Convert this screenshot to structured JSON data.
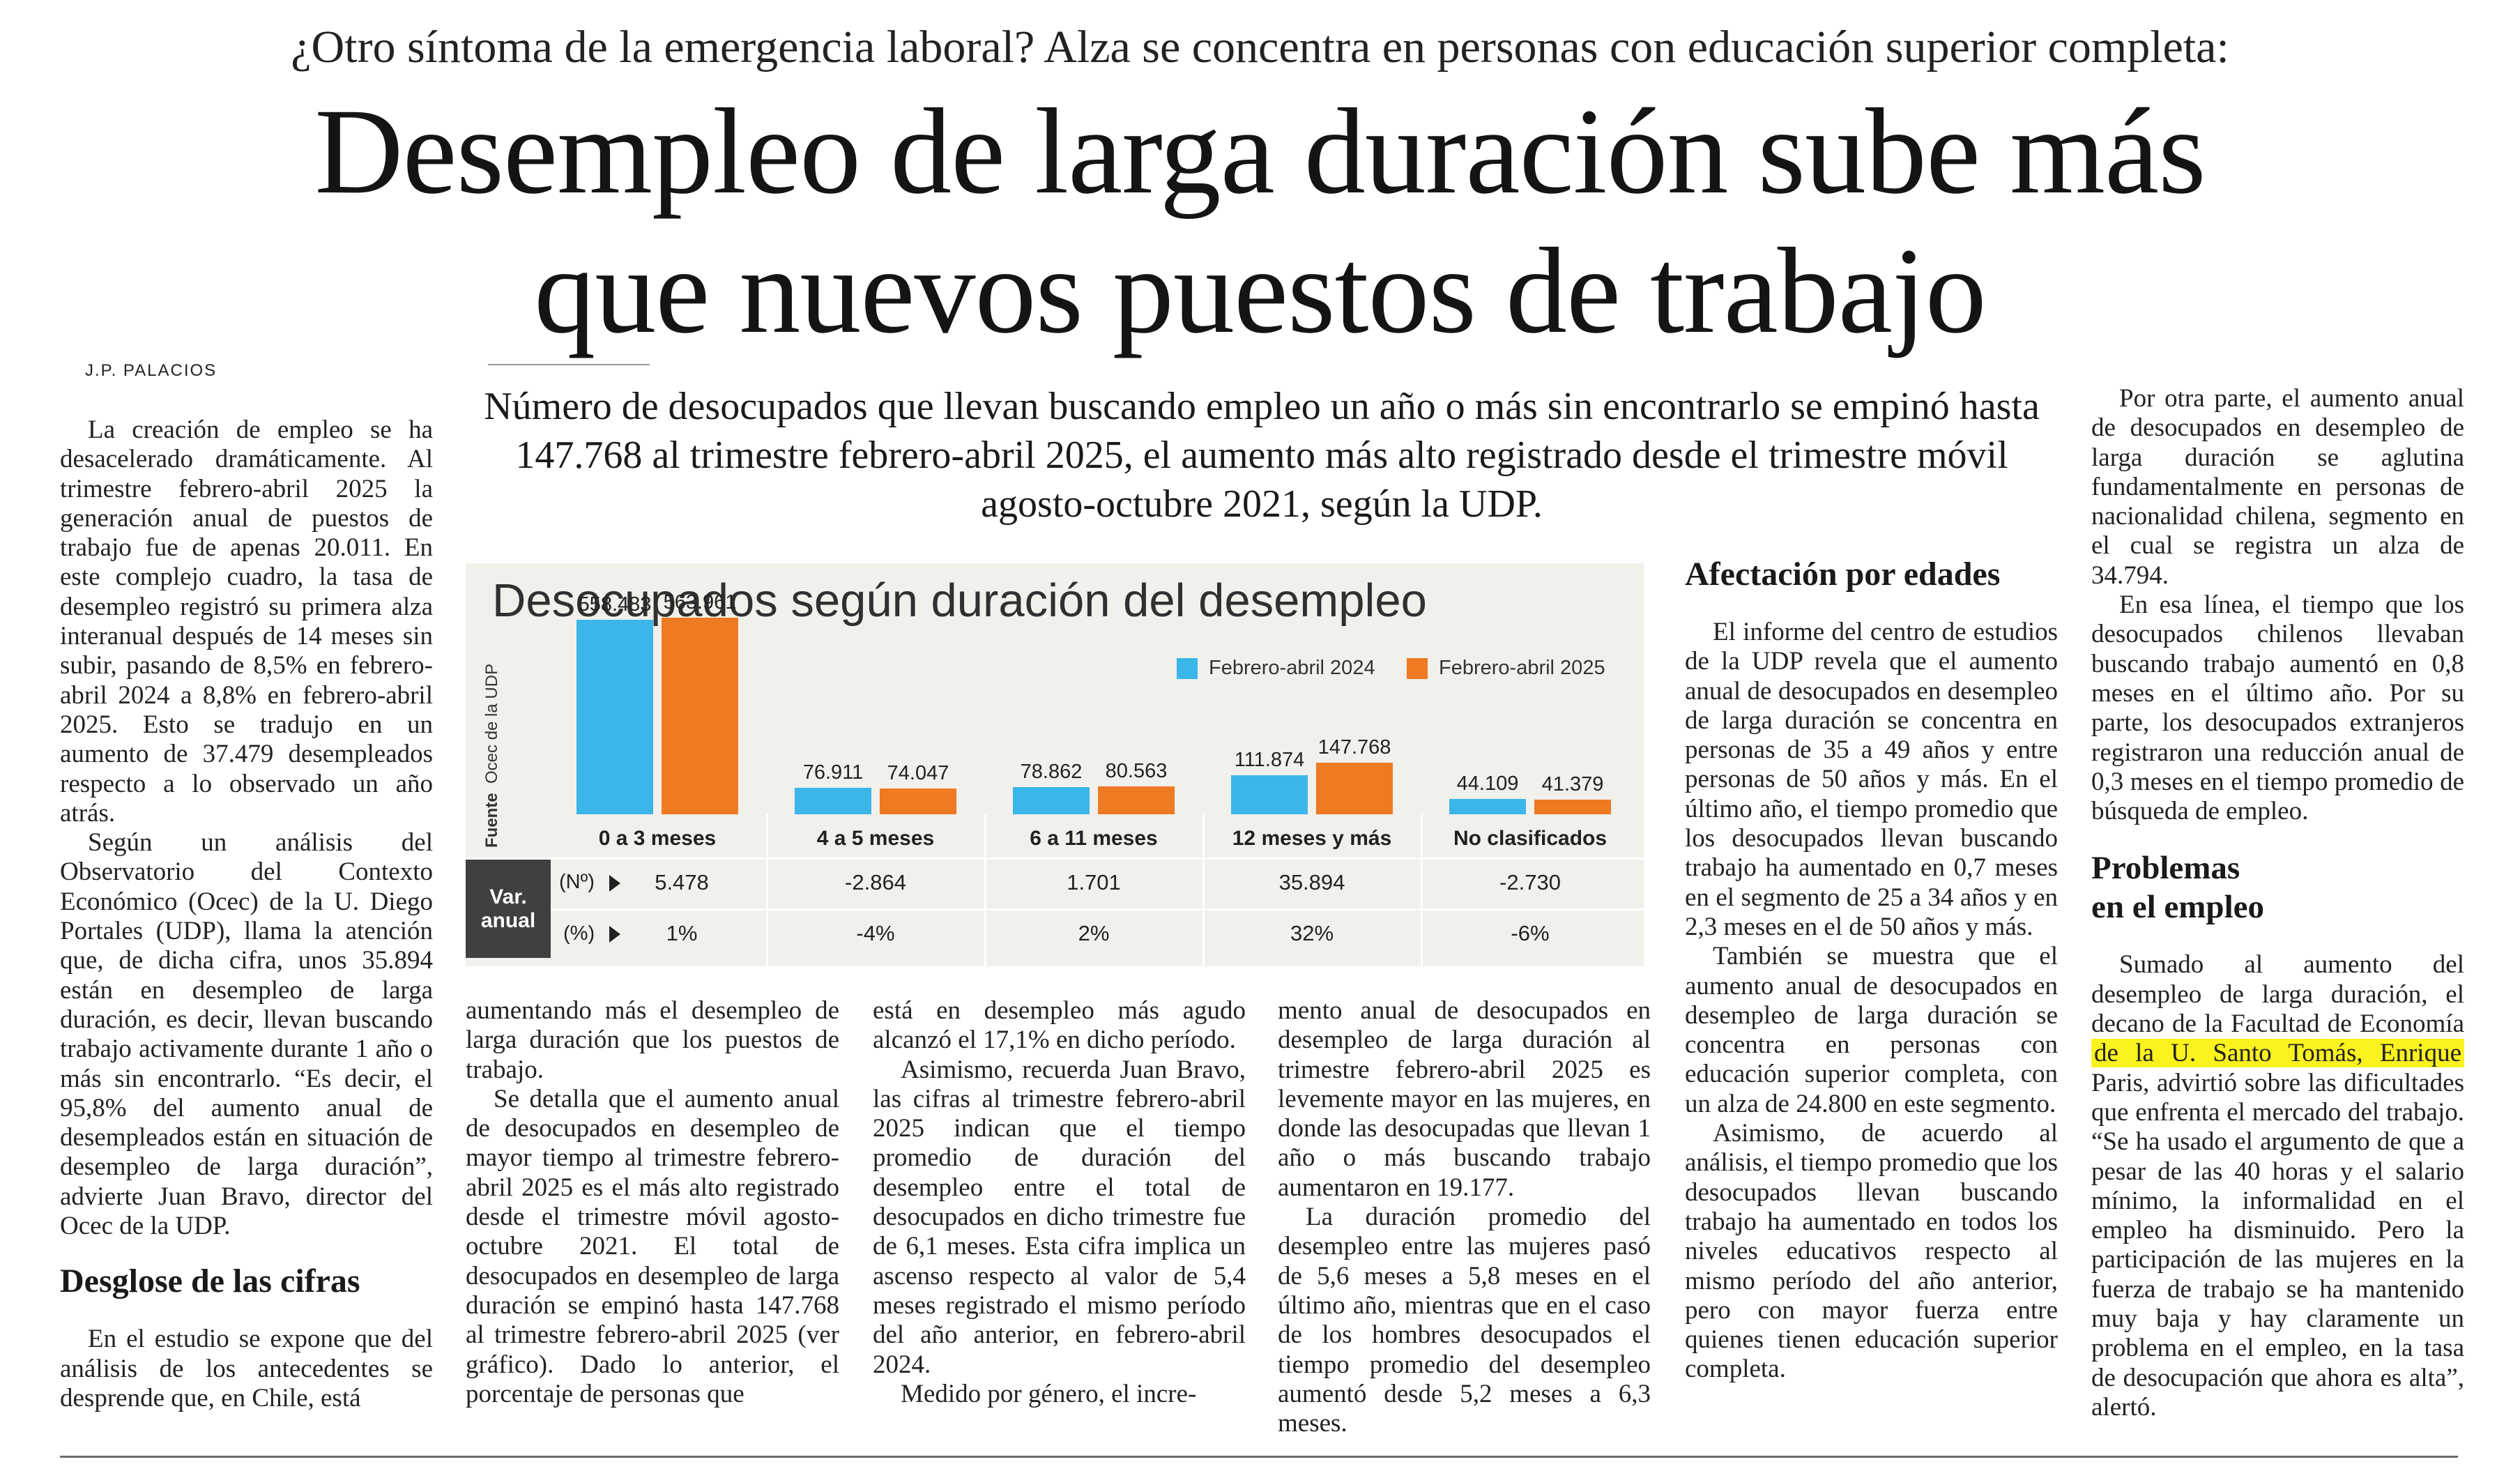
{
  "kicker": "¿Otro síntoma de la emergencia laboral? Alza se concentra en personas con educación superior completa:",
  "headline": {
    "line1": "Desempleo de larga duración sube más",
    "line2": "que nuevos puestos de trabajo"
  },
  "byline": "J.P. PALACIOS",
  "deck": "Número de desocupados que llevan buscando empleo un año o más sin encontrarlo se empinó hasta 147.768 al trimestre febrero-abril 2025, el aumento más alto registrado desde el trimestre móvil agosto-octubre 2021, según la UDP.",
  "col1": {
    "p1": "La creación de empleo se ha desacelerado dramáticamente. Al trimestre febrero-abril 2025 la generación anual de puestos de trabajo fue de apenas 20.011. En este complejo cuadro, la tasa de desempleo registró su primera alza interanual después de 14 meses sin subir, pasando de 8,5% en febrero-abril 2024 a 8,8% en febrero-abril 2025. Esto se tradujo en un aumento de 37.479 desempleados respecto a lo observado un año atrás.",
    "p2": "Según un análisis del Observatorio del Contexto Económico (Ocec) de la U. Diego Portales (UDP), llama la atención que, de dicha cifra, unos 35.894 están en desempleo de larga duración, es decir, llevan buscando trabajo activamente durante 1 año o más sin encontrarlo. “Es decir, el 95,8% del aumento anual de desempleados están en situación de desempleo de larga duración”, advierte Juan Bravo, director del Ocec de la UDP.",
    "heading": "Desglose de las cifras",
    "p3": "En el estudio se expone que del análisis de los antecedentes se desprende que, en Chile, está"
  },
  "col2": {
    "p1": "aumentando más el desempleo de larga duración que los puestos de trabajo.",
    "p2": "Se detalla que el aumento anual de desocupados en desempleo de mayor tiempo al trimestre febrero-abril 2025 es el más alto registrado desde el trimestre móvil agosto-octubre 2021. El total de desocupados en desempleo de larga duración se empinó hasta 147.768 al trimestre febrero-abril 2025 (ver gráfico). Dado lo anterior, el porcentaje de personas que"
  },
  "col3": {
    "p1": "está en desempleo más agudo alcanzó el 17,1% en dicho período.",
    "p2": "Asimismo, recuerda Juan Bravo, las cifras al trimestre febrero-abril 2025 indican que el tiempo promedio de duración del desempleo entre el total de desocupados en dicho trimestre fue de 6,1 meses. Esta cifra implica un ascenso respecto al valor de 5,4 meses registrado el mismo período del año anterior, en febrero-abril 2024.",
    "p3": "Medido por género, el incre-"
  },
  "col4": {
    "p1": "mento anual de desocupados en desempleo de larga duración al trimestre febrero-abril 2025 es levemente mayor en las mujeres, en donde las desocupadas que llevan 1 año o más buscando trabajo aumentaron en 19.177.",
    "p2": "La duración promedio del desempleo entre las mujeres pasó de 5,6 meses a 5,8 meses en el último año, mientras que en el caso de los hombres desocupados el tiempo promedio del desempleo aumentó desde 5,2 meses a 6,3 meses."
  },
  "col5": {
    "heading": "Afectación por edades",
    "p1": "El informe del centro de estudios de la UDP revela que el aumento anual de desocupados en desempleo de larga duración se concentra en personas de 35 a 49 años y entre personas de 50 años y más. En el último año, el tiempo promedio que los desocupados llevan buscando trabajo ha aumentado en 0,7 meses en el segmento de 25 a 34 años y en 2,3 meses en el de 50 años y más.",
    "p2": "También se muestra que el aumento anual de desocupados en desempleo de larga duración se concentra en personas con educación superior completa, con un alza de 24.800 en este segmento.",
    "p3": "Asimismo, de acuerdo al análisis, el tiempo promedio que los desocupados llevan buscando trabajo ha aumentado en todos los niveles educativos respecto al mismo período del año anterior, pero con mayor fuerza entre quienes tienen educación superior completa."
  },
  "col6": {
    "p1": "Por otra parte, el aumento anual de desocupados en desempleo de larga duración se aglutina fundamentalmente en personas de nacionalidad chilena, segmento en el cual se registra un alza de 34.794.",
    "p2": "En esa línea, el tiempo que los desocupados chilenos llevaban buscando trabajo aumentó en 0,8 meses en el último año. Por su parte, los desocupados extranjeros registraron una reducción anual de 0,3 meses en el tiempo promedio de búsqueda de empleo.",
    "heading_line1": "Problemas",
    "heading_line2": "en el empleo",
    "p3_before": "Sumado al aumento del desempleo de larga duración, el decano de la Facultad de Economía",
    "p3_highlight": "de la U. Santo Tomás, Enrique",
    "p3_after": "Paris, advirtió sobre las dificultades que enfrenta el mercado del trabajo. “Se ha usado el argumento de que a pesar de las 40 horas y el salario mínimo, la informalidad en el empleo ha disminuido. Pero la participación de las mujeres en la fuerza de trabajo se ha mantenido muy baja y hay claramente un problema en el empleo, en la tasa de desocupación que ahora es alta”, alertó."
  },
  "chart_data": {
    "type": "bar",
    "title": "Desocupados según duración del desempleo",
    "source_label": "Fuente",
    "source_text": "Ocec de la UDP",
    "categories": [
      "0 a 3 meses",
      "4 a 5 meses",
      "6 a 11 meses",
      "12 meses y más",
      "No clasificados"
    ],
    "series": [
      {
        "name": "Febrero-abril 2024",
        "color": "#3bb6e8",
        "values": [
          558483,
          76911,
          78862,
          111874,
          44109
        ],
        "labels": [
          "558.483",
          "76.911",
          "78.862",
          "111.874",
          "44.109"
        ]
      },
      {
        "name": "Febrero-abril 2025",
        "color": "#ee7a23",
        "values": [
          563961,
          74047,
          80563,
          147768,
          41379
        ],
        "labels": [
          "563.961",
          "74.047",
          "80.563",
          "147.768",
          "41.379"
        ]
      }
    ],
    "var_label_line1": "Var.",
    "var_label_line2": "anual",
    "var_rows": [
      {
        "label": "(Nº)",
        "values": [
          "5.478",
          "-2.864",
          "1.701",
          "35.894",
          "-2.730"
        ]
      },
      {
        "label": "(%)",
        "values": [
          "1%",
          "-4%",
          "2%",
          "32%",
          "-6%"
        ]
      }
    ],
    "ylim": [
      0,
      600000
    ],
    "legend_position": "top-right",
    "grid": false
  }
}
